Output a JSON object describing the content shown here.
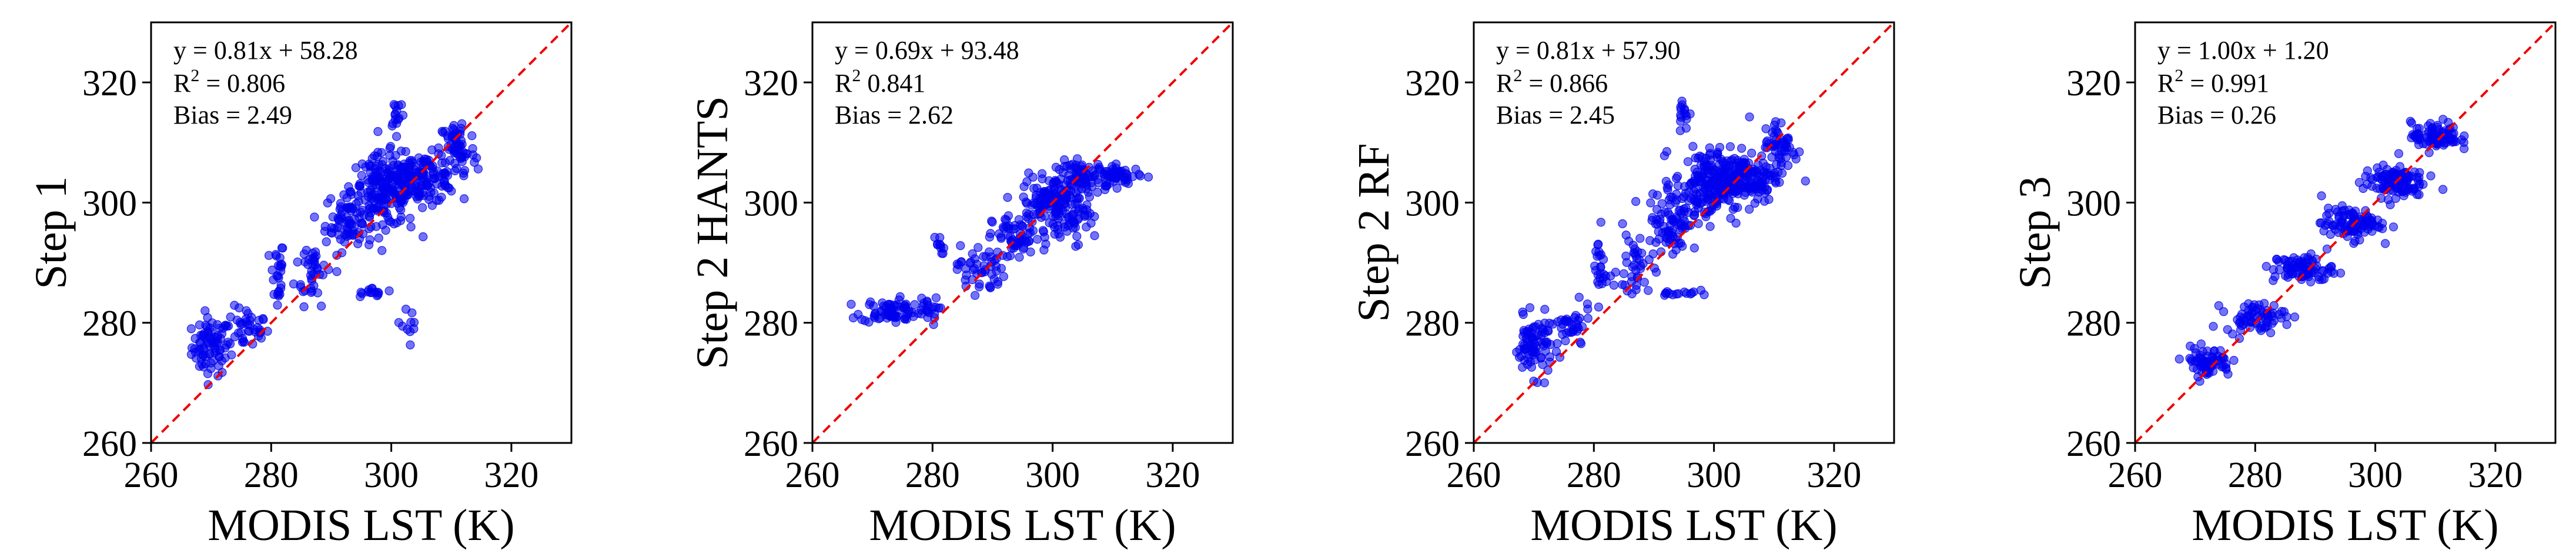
{
  "chart_data": [
    {
      "type": "scatter",
      "panel": "step-1",
      "xlabel": "MODIS LST (K)",
      "ylabel": "Step 1",
      "xlim": [
        260,
        330
      ],
      "ylim": [
        260,
        330
      ],
      "xticks": [
        "260",
        "280",
        "300",
        "320"
      ],
      "yticks": [
        "260",
        "280",
        "300",
        "320"
      ],
      "reference_line": "1:1",
      "equation": "y = 0.81x + 58.28",
      "r2_label": "R",
      "r2_exp": "2",
      "r2_value": " =  0.806",
      "bias": "Bias = 2.49",
      "clusters": [
        {
          "x": 270,
          "y": 276,
          "sx": 1.6,
          "sy": 2.4,
          "n": 80
        },
        {
          "x": 276,
          "y": 279,
          "sx": 1.8,
          "sy": 1.8,
          "n": 40
        },
        {
          "x": 281,
          "y": 288,
          "sx": 0.6,
          "sy": 3.0,
          "n": 25
        },
        {
          "x": 287,
          "y": 289,
          "sx": 1.5,
          "sy": 3.0,
          "n": 40
        },
        {
          "x": 293,
          "y": 297,
          "sx": 2.0,
          "sy": 2.5,
          "n": 80
        },
        {
          "x": 299,
          "y": 302,
          "sx": 2.8,
          "sy": 3.0,
          "n": 180
        },
        {
          "x": 305,
          "y": 304,
          "sx": 3.0,
          "sy": 2.0,
          "n": 140
        },
        {
          "x": 311,
          "y": 309,
          "sx": 1.5,
          "sy": 2.5,
          "n": 60
        },
        {
          "x": 301,
          "y": 315,
          "sx": 0.6,
          "sy": 1.4,
          "n": 15
        },
        {
          "x": 297,
          "y": 285,
          "sx": 1.8,
          "sy": 0.4,
          "n": 15
        },
        {
          "x": 303,
          "y": 279,
          "sx": 0.6,
          "sy": 4.5,
          "n": 10
        }
      ]
    },
    {
      "type": "scatter",
      "panel": "step-2-hants",
      "xlabel": "MODIS LST (K)",
      "ylabel": "Step 2 HANTS",
      "xlim": [
        260,
        330
      ],
      "ylim": [
        260,
        330
      ],
      "xticks": [
        "260",
        "280",
        "300",
        "320"
      ],
      "yticks": [
        "260",
        "280",
        "300",
        "320"
      ],
      "reference_line": "1:1",
      "equation": "y = 0.69x + 93.48",
      "r2_label": "R",
      "r2_exp": "2",
      "r2_value": "  0.841",
      "bias": "Bias = 2.62",
      "clusters": [
        {
          "x": 273,
          "y": 282,
          "sx": 2.5,
          "sy": 1.0,
          "n": 70
        },
        {
          "x": 279,
          "y": 282,
          "sx": 1.0,
          "sy": 1.2,
          "n": 20
        },
        {
          "x": 281,
          "y": 293,
          "sx": 0.5,
          "sy": 0.8,
          "n": 10
        },
        {
          "x": 288,
          "y": 289,
          "sx": 2.0,
          "sy": 2.0,
          "n": 50
        },
        {
          "x": 294,
          "y": 294,
          "sx": 2.0,
          "sy": 2.0,
          "n": 60
        },
        {
          "x": 300,
          "y": 300,
          "sx": 2.5,
          "sy": 2.2,
          "n": 140
        },
        {
          "x": 305,
          "y": 304,
          "sx": 2.2,
          "sy": 1.5,
          "n": 80
        },
        {
          "x": 311,
          "y": 304.5,
          "sx": 1.8,
          "sy": 0.8,
          "n": 50
        },
        {
          "x": 304,
          "y": 297,
          "sx": 1.5,
          "sy": 1.8,
          "n": 25
        }
      ]
    },
    {
      "type": "scatter",
      "panel": "step-2-rf",
      "xlabel": "MODIS LST (K)",
      "ylabel": "Step 2 RF",
      "xlim": [
        260,
        330
      ],
      "ylim": [
        260,
        330
      ],
      "xticks": [
        "260",
        "280",
        "300",
        "320"
      ],
      "yticks": [
        "260",
        "280",
        "300",
        "320"
      ],
      "reference_line": "1:1",
      "equation": "y = 0.81x + 57.90",
      "r2_label": "R",
      "r2_exp": "2",
      "r2_value": " =  0.866",
      "bias": "Bias = 2.45",
      "clusters": [
        {
          "x": 270,
          "y": 276,
          "sx": 1.6,
          "sy": 2.4,
          "n": 80
        },
        {
          "x": 276,
          "y": 279,
          "sx": 1.8,
          "sy": 1.8,
          "n": 40
        },
        {
          "x": 281,
          "y": 289,
          "sx": 0.6,
          "sy": 3.0,
          "n": 25
        },
        {
          "x": 287,
          "y": 289,
          "sx": 1.5,
          "sy": 3.0,
          "n": 40
        },
        {
          "x": 293,
          "y": 297,
          "sx": 2.0,
          "sy": 2.5,
          "n": 80
        },
        {
          "x": 299,
          "y": 303,
          "sx": 2.8,
          "sy": 3.0,
          "n": 180
        },
        {
          "x": 305,
          "y": 304,
          "sx": 3.0,
          "sy": 2.0,
          "n": 140
        },
        {
          "x": 311,
          "y": 309,
          "sx": 1.5,
          "sy": 2.5,
          "n": 60
        },
        {
          "x": 295,
          "y": 315,
          "sx": 0.6,
          "sy": 1.4,
          "n": 15
        },
        {
          "x": 294,
          "y": 285,
          "sx": 1.6,
          "sy": 0.4,
          "n": 15
        }
      ]
    },
    {
      "type": "scatter",
      "panel": "step-3",
      "xlabel": "MODIS LST (K)",
      "ylabel": "Step 3",
      "xlim": [
        260,
        330
      ],
      "ylim": [
        260,
        330
      ],
      "xticks": [
        "260",
        "280",
        "300",
        "320"
      ],
      "yticks": [
        "260",
        "280",
        "300",
        "320"
      ],
      "reference_line": "1:1",
      "equation": "y = 1.00x + 1.20",
      "r2_label": "R",
      "r2_exp": "2",
      "r2_value": " =  0.991",
      "bias": "Bias = 0.26",
      "clusters": [
        {
          "x": 272,
          "y": 273.5,
          "sx": 2.0,
          "sy": 1.2,
          "n": 70
        },
        {
          "x": 280,
          "y": 281,
          "sx": 2.5,
          "sy": 1.2,
          "n": 70
        },
        {
          "x": 288,
          "y": 289,
          "sx": 2.5,
          "sy": 1.2,
          "n": 80
        },
        {
          "x": 296,
          "y": 296.5,
          "sx": 2.5,
          "sy": 1.3,
          "n": 100
        },
        {
          "x": 303,
          "y": 303.5,
          "sx": 2.5,
          "sy": 1.3,
          "n": 120
        },
        {
          "x": 310,
          "y": 311,
          "sx": 2.0,
          "sy": 1.2,
          "n": 90
        }
      ]
    }
  ],
  "colors": {
    "points": "#0000ee",
    "reference_line": "#ee0000",
    "axes": "#000000"
  }
}
